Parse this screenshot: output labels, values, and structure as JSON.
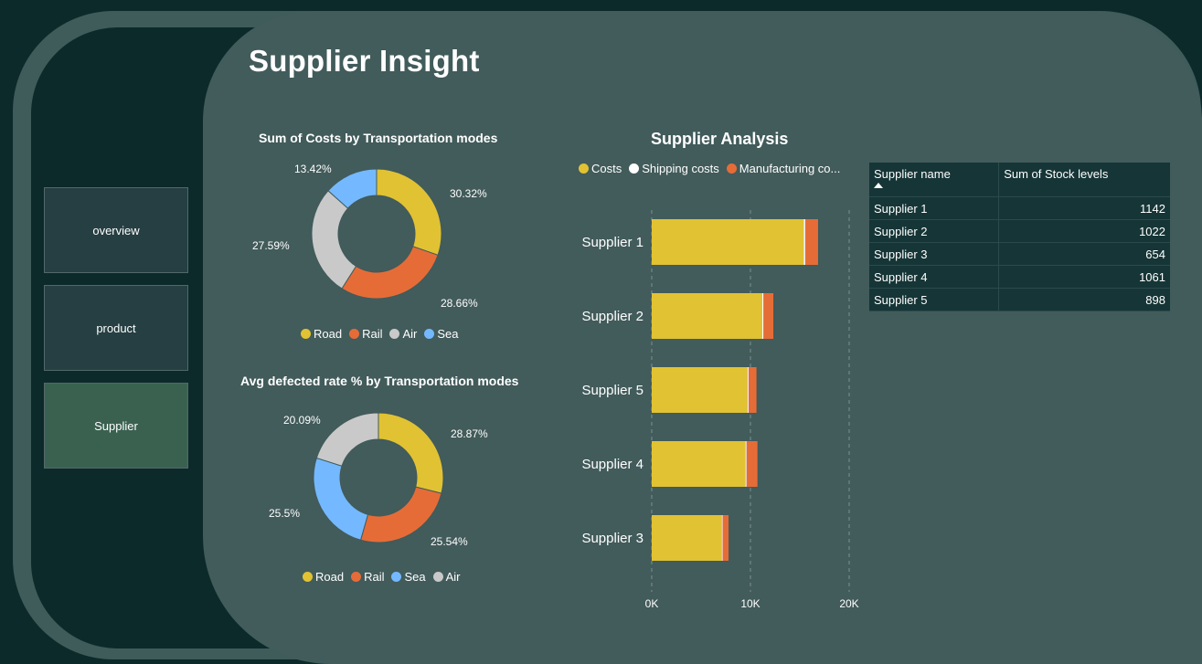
{
  "title": "Supplier Insight",
  "nav": [
    {
      "label": "overview"
    },
    {
      "label": "product"
    },
    {
      "label": "Supplier"
    }
  ],
  "colors": {
    "road": "#e1c233",
    "rail": "#e66c37",
    "air": "#c9c9c9",
    "sea": "#74b9ff",
    "shipping": "#ffffff"
  },
  "donut1": {
    "title": "Sum of Costs by Transportation modes",
    "slices": [
      {
        "name": "Road",
        "value": 30.32,
        "label": "30.32%",
        "color": "#e1c233"
      },
      {
        "name": "Rail",
        "value": 28.66,
        "label": "28.66%",
        "color": "#e66c37"
      },
      {
        "name": "Air",
        "value": 27.59,
        "label": "27.59%",
        "color": "#c9c9c9"
      },
      {
        "name": "Sea",
        "value": 13.42,
        "label": "13.42%",
        "color": "#74b9ff"
      }
    ],
    "legend": [
      "Road",
      "Rail",
      "Air",
      "Sea"
    ]
  },
  "donut2": {
    "title": "Avg defected rate % by Transportation modes",
    "slices": [
      {
        "name": "Road",
        "value": 28.87,
        "label": "28.87%",
        "color": "#e1c233"
      },
      {
        "name": "Rail",
        "value": 25.54,
        "label": "25.54%",
        "color": "#e66c37"
      },
      {
        "name": "Sea",
        "value": 25.5,
        "label": "25.5%",
        "color": "#74b9ff"
      },
      {
        "name": "Air",
        "value": 20.09,
        "label": "20.09%",
        "color": "#c9c9c9"
      }
    ],
    "legend": [
      "Road",
      "Rail",
      "Sea",
      "Air"
    ]
  },
  "chart_data": {
    "type": "bar",
    "title": "Supplier Analysis",
    "categories": [
      "Supplier 1",
      "Supplier 2",
      "Supplier 5",
      "Supplier 4",
      "Supplier 3"
    ],
    "series": [
      {
        "name": "Costs",
        "values": [
          15400,
          11200,
          9700,
          9500,
          7100
        ],
        "color": "#e1c233"
      },
      {
        "name": "Shipping costs",
        "values": [
          150,
          120,
          110,
          110,
          80
        ],
        "color": "#ffffff"
      },
      {
        "name": "Manufacturing co...",
        "values": [
          1300,
          1000,
          800,
          1100,
          600
        ],
        "color": "#e66c37"
      }
    ],
    "xticks": [
      "0K",
      "10K",
      "20K"
    ],
    "xlim": [
      0,
      20000
    ],
    "stacked": true,
    "legend_position": "top-left"
  },
  "table": {
    "headers": [
      "Supplier name",
      "Sum of Stock levels"
    ],
    "rows": [
      [
        "Supplier 1",
        "1142"
      ],
      [
        "Supplier 2",
        "1022"
      ],
      [
        "Supplier 3",
        "654"
      ],
      [
        "Supplier 4",
        "1061"
      ],
      [
        "Supplier 5",
        "898"
      ]
    ]
  }
}
